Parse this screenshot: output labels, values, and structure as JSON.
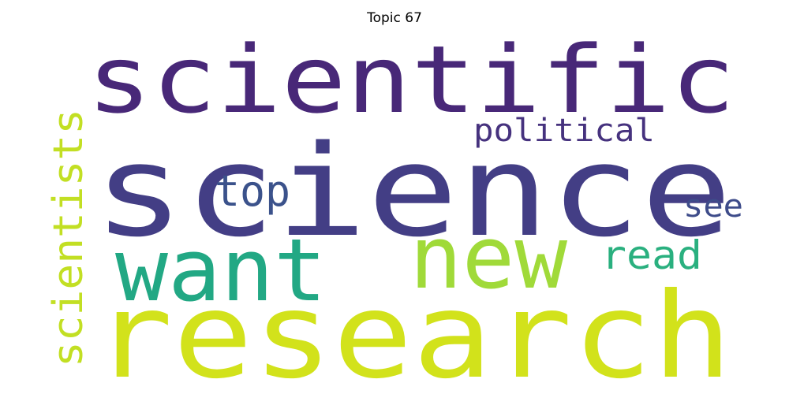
{
  "title": "Topic 67",
  "words": [
    {
      "text": "scientific",
      "color": "#482878"
    },
    {
      "text": "science",
      "color": "#433e85"
    },
    {
      "text": "research",
      "color": "#d2e21b"
    },
    {
      "text": "want",
      "color": "#22a884"
    },
    {
      "text": "new",
      "color": "#a0da39"
    },
    {
      "text": "scientists",
      "color": "#c2df23"
    },
    {
      "text": "political",
      "color": "#46327e"
    },
    {
      "text": "top",
      "color": "#3b528b"
    },
    {
      "text": "read",
      "color": "#2ab07f"
    },
    {
      "text": "see",
      "color": "#3e4c8a"
    }
  ]
}
